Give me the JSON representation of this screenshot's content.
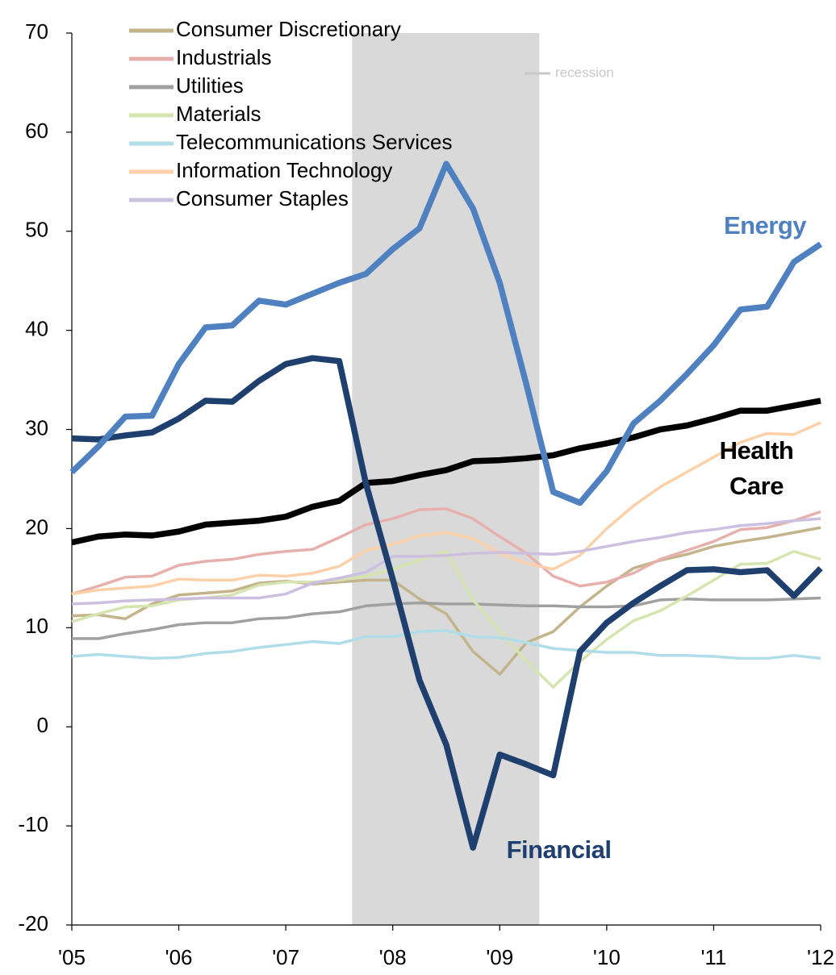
{
  "chart_data": {
    "type": "line",
    "x": [
      2005,
      2005.25,
      2005.5,
      2005.75,
      2006,
      2006.25,
      2006.5,
      2006.75,
      2007,
      2007.25,
      2007.5,
      2007.75,
      2008,
      2008.25,
      2008.5,
      2008.75,
      2009,
      2009.25,
      2009.5,
      2009.75,
      2010,
      2010.25,
      2010.5,
      2010.75,
      2011,
      2011.25,
      2011.5,
      2011.75,
      2012
    ],
    "xlim": [
      2005,
      2012
    ],
    "xticks": [
      {
        "value": 2005,
        "label": "'05"
      },
      {
        "value": 2006,
        "label": "'06"
      },
      {
        "value": 2007,
        "label": "'07"
      },
      {
        "value": 2008,
        "label": "'08"
      },
      {
        "value": 2009,
        "label": "'09"
      },
      {
        "value": 2010,
        "label": "'10"
      },
      {
        "value": 2011,
        "label": "'11"
      },
      {
        "value": 2012,
        "label": "'12"
      }
    ],
    "ylim": [
      -20,
      70
    ],
    "yticks": [
      -20,
      -10,
      0,
      10,
      20,
      30,
      40,
      50,
      60,
      70
    ],
    "recession": {
      "label": "recession",
      "color": "#d9d9d9",
      "xlim": [
        2007.62,
        2009.37
      ]
    },
    "series": [
      {
        "name": "Consumer Discretionary",
        "color": "#c4b48c",
        "values": [
          11.2,
          11.3,
          10.9,
          12.4,
          13.3,
          13.5,
          13.7,
          14.5,
          14.7,
          14.4,
          14.6,
          14.8,
          14.8,
          12.9,
          11.4,
          7.6,
          5.3,
          8.5,
          9.6,
          12.1,
          14.2,
          16,
          16.8,
          17.4,
          18.2,
          18.7,
          19.1,
          19.6,
          20.1
        ]
      },
      {
        "name": "Industrials",
        "color": "#e8b0ad",
        "values": [
          13.4,
          14.2,
          15.1,
          15.2,
          16.3,
          16.7,
          16.9,
          17.4,
          17.7,
          17.9,
          19.1,
          20.4,
          21,
          21.9,
          22,
          21,
          19.2,
          17.5,
          15.2,
          14.2,
          14.6,
          15.5,
          16.9,
          17.8,
          18.7,
          19.9,
          20.1,
          20.8,
          21.7
        ]
      },
      {
        "name": "Utilities",
        "color": "#a0a0a0",
        "values": [
          8.9,
          8.9,
          9.4,
          9.8,
          10.3,
          10.5,
          10.5,
          10.9,
          11,
          11.4,
          11.6,
          12.2,
          12.4,
          12.5,
          12.4,
          12.4,
          12.3,
          12.2,
          12.2,
          12.1,
          12.1,
          12.2,
          12.8,
          12.9,
          12.8,
          12.8,
          12.8,
          12.9,
          13
        ]
      },
      {
        "name": "Materials",
        "color": "#d6e4b0",
        "values": [
          10.6,
          11.4,
          12.1,
          12.2,
          12.8,
          13,
          13.3,
          14.3,
          14.6,
          14.6,
          14.8,
          15.2,
          15.9,
          16.8,
          17.7,
          12.8,
          9.7,
          6.6,
          4,
          6.6,
          8.8,
          10.7,
          11.7,
          13.2,
          14.8,
          16.4,
          16.5,
          17.7,
          16.9
        ]
      },
      {
        "name": "Telecommunications Services",
        "color": "#b0dde8",
        "values": [
          7.1,
          7.3,
          7.1,
          6.9,
          7,
          7.4,
          7.6,
          8,
          8.3,
          8.6,
          8.4,
          9.1,
          9.1,
          9.6,
          9.7,
          9.1,
          9,
          8.5,
          7.9,
          7.7,
          7.5,
          7.5,
          7.2,
          7.2,
          7.1,
          6.9,
          6.9,
          7.2,
          6.9
        ]
      },
      {
        "name": "Information Technology",
        "color": "#fcd0a8",
        "values": [
          13.4,
          13.8,
          14,
          14.2,
          14.9,
          14.8,
          14.8,
          15.3,
          15.2,
          15.5,
          16.2,
          17.8,
          18.4,
          19.3,
          19.6,
          19,
          17.5,
          16.5,
          15.9,
          17.3,
          20,
          22.3,
          24.2,
          25.7,
          27.2,
          28.7,
          29.6,
          29.5,
          30.7
        ]
      },
      {
        "name": "Consumer Staples",
        "color": "#cdbfdf",
        "values": [
          12.4,
          12.5,
          12.7,
          12.8,
          12.9,
          13,
          13,
          13,
          13.4,
          14.5,
          15,
          15.6,
          17.2,
          17.2,
          17.3,
          17.5,
          17.6,
          17.5,
          17.4,
          17.7,
          18.2,
          18.7,
          19.1,
          19.6,
          19.9,
          20.3,
          20.5,
          20.8,
          21
        ]
      }
    ],
    "highlighted_series": [
      {
        "name": "Health Care",
        "color": "#000000",
        "values": [
          18.6,
          19.2,
          19.4,
          19.3,
          19.7,
          20.4,
          20.6,
          20.8,
          21.2,
          22.2,
          22.8,
          24.6,
          24.8,
          25.4,
          25.9,
          26.8,
          26.9,
          27.1,
          27.4,
          28.1,
          28.6,
          29.2,
          30,
          30.4,
          31.1,
          31.9,
          31.9,
          32.4,
          32.9
        ]
      },
      {
        "name": "Financial",
        "color": "#1f3f6e",
        "values": [
          29.1,
          29,
          29.4,
          29.7,
          31.1,
          32.9,
          32.8,
          34.9,
          36.6,
          37.2,
          36.9,
          24.5,
          14.9,
          4.7,
          -1.8,
          -12.2,
          -2.8,
          -3.8,
          -4.9,
          7.6,
          10.5,
          12.5,
          14.2,
          15.8,
          15.9,
          15.6,
          15.8,
          13.2,
          16
        ]
      },
      {
        "name": "Energy",
        "color": "#4f81c1",
        "values": [
          25.7,
          28.3,
          31.3,
          31.4,
          36.6,
          40.3,
          40.5,
          43,
          42.6,
          43.7,
          44.8,
          45.7,
          48.2,
          50.3,
          56.8,
          52.3,
          44.8,
          34.5,
          23.7,
          22.6,
          25.8,
          30.6,
          32.9,
          35.6,
          38.5,
          42.1,
          42.4,
          46.9,
          48.7
        ]
      }
    ]
  }
}
